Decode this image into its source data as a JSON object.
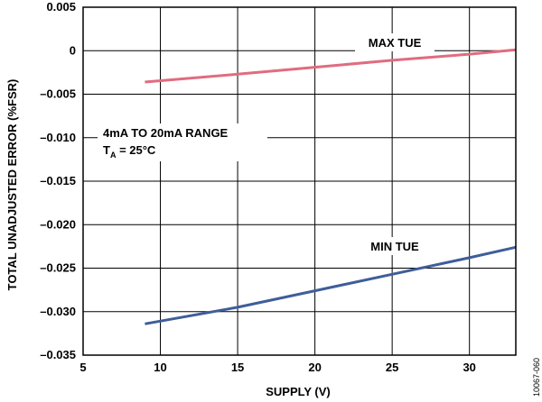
{
  "chart_data": {
    "type": "line",
    "xlabel": "SUPPLY (V)",
    "ylabel": "TOTAL UNADJUSTED ERROR (%FSR)",
    "xlim": [
      5,
      33
    ],
    "ylim": [
      -0.035,
      0.005
    ],
    "x_ticks": [
      "5",
      "10",
      "15",
      "20",
      "25",
      "30"
    ],
    "y_ticks": [
      "0.005",
      "0",
      "–0.005",
      "–0.010",
      "–0.015",
      "–0.020",
      "–0.025",
      "–0.030",
      "–0.035"
    ],
    "grid": true,
    "series": [
      {
        "name": "MAX TUE",
        "color": "#e06c80",
        "x": [
          9,
          15,
          20,
          25,
          30,
          33
        ],
        "y": [
          -0.0036,
          -0.0027,
          -0.0019,
          -0.0011,
          -0.0004,
          0.0001
        ]
      },
      {
        "name": "MIN TUE",
        "color": "#3f5d99",
        "x": [
          9,
          15,
          20,
          25,
          30,
          33
        ],
        "y": [
          -0.0314,
          -0.0295,
          -0.0276,
          -0.0257,
          -0.0238,
          -0.0226
        ]
      }
    ],
    "annotations": {
      "range": "4mA TO 20mA RANGE",
      "temp_main": "T",
      "temp_sub": "A",
      "temp_rest": " = 25°C"
    },
    "figure_id": "10067-060"
  }
}
